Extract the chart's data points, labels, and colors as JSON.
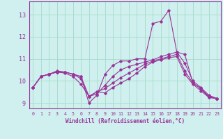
{
  "xlabel": "Windchill (Refroidissement éolien,°C)",
  "background_color": "#cff0ee",
  "grid_color": "#aaddcc",
  "line_color": "#993399",
  "xlim": [
    -0.5,
    23.5
  ],
  "ylim": [
    8.75,
    13.6
  ],
  "yticks": [
    9,
    10,
    11,
    12,
    13
  ],
  "xticks": [
    0,
    1,
    2,
    3,
    4,
    5,
    6,
    7,
    8,
    9,
    10,
    11,
    12,
    13,
    14,
    15,
    16,
    17,
    18,
    19,
    20,
    21,
    22,
    23
  ],
  "series": [
    {
      "x": [
        0,
        1,
        2,
        3,
        4,
        5,
        6,
        7,
        8,
        9,
        10,
        11,
        12,
        13,
        14,
        15,
        16,
        17,
        18,
        19,
        20,
        21,
        22,
        23
      ],
      "y": [
        9.7,
        10.2,
        10.3,
        10.4,
        10.4,
        10.3,
        10.2,
        9.0,
        9.35,
        10.3,
        10.7,
        10.9,
        10.9,
        11.0,
        11.0,
        12.6,
        12.7,
        13.2,
        11.3,
        11.2,
        9.9,
        9.65,
        9.3,
        9.2
      ]
    },
    {
      "x": [
        0,
        1,
        2,
        3,
        4,
        5,
        6,
        7,
        8,
        9,
        10,
        11,
        12,
        13,
        14,
        15,
        16,
        17,
        18,
        19,
        20,
        21,
        22,
        23
      ],
      "y": [
        9.7,
        10.2,
        10.3,
        10.4,
        10.4,
        10.3,
        10.2,
        9.3,
        9.4,
        9.8,
        10.2,
        10.5,
        10.65,
        10.75,
        10.85,
        10.95,
        11.1,
        11.2,
        11.3,
        10.8,
        10.0,
        9.7,
        9.35,
        9.2
      ]
    },
    {
      "x": [
        0,
        1,
        2,
        3,
        4,
        5,
        6,
        7,
        8,
        9,
        10,
        11,
        12,
        13,
        14,
        15,
        16,
        17,
        18,
        19,
        20,
        21,
        22,
        23
      ],
      "y": [
        9.7,
        10.2,
        10.3,
        10.45,
        10.4,
        10.3,
        10.1,
        9.3,
        9.5,
        9.65,
        9.9,
        10.15,
        10.35,
        10.55,
        10.75,
        10.9,
        11.0,
        11.1,
        11.2,
        10.45,
        9.9,
        9.65,
        9.25,
        9.2
      ]
    },
    {
      "x": [
        0,
        1,
        2,
        3,
        4,
        5,
        6,
        7,
        8,
        9,
        10,
        11,
        12,
        13,
        14,
        15,
        16,
        17,
        18,
        19,
        20,
        21,
        22,
        23
      ],
      "y": [
        9.7,
        10.2,
        10.3,
        10.4,
        10.35,
        10.2,
        9.85,
        9.3,
        9.5,
        9.45,
        9.7,
        9.9,
        10.1,
        10.35,
        10.65,
        10.85,
        10.95,
        11.05,
        11.1,
        10.3,
        9.85,
        9.55,
        9.25,
        9.2
      ]
    }
  ]
}
